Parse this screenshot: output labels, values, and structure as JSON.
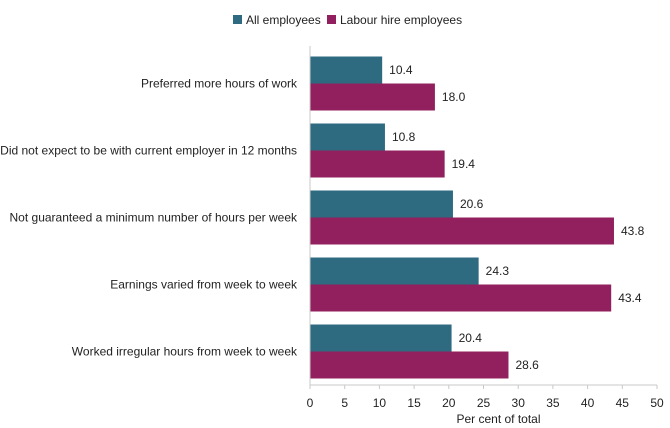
{
  "chart_data": {
    "type": "bar",
    "orientation": "horizontal",
    "categories": [
      "Preferred more hours of work",
      "Did not expect to be with current employer in 12 months",
      "Not guaranteed a minimum number of hours per week",
      "Earnings varied from week to week",
      "Worked irregular hours from week to week"
    ],
    "series": [
      {
        "name": "All employees",
        "color": "#2e6b80",
        "values": [
          10.4,
          10.8,
          20.6,
          24.3,
          20.4
        ]
      },
      {
        "name": "Labour hire employees",
        "color": "#93205e",
        "values": [
          18.0,
          19.4,
          43.8,
          43.4,
          28.6
        ]
      }
    ],
    "value_labels": [
      [
        "10.4",
        "10.8",
        "20.6",
        "24.3",
        "20.4"
      ],
      [
        "18.0",
        "19.4",
        "43.8",
        "43.4",
        "28.6"
      ]
    ],
    "title": "",
    "xlabel": "Per cent of total",
    "ylabel": "",
    "xlim": [
      0,
      50
    ],
    "xticks": [
      0,
      5,
      10,
      15,
      20,
      25,
      30,
      35,
      40,
      45,
      50
    ],
    "xtick_labels": [
      "0",
      "5",
      "10",
      "15",
      "20",
      "25",
      "30",
      "35",
      "40",
      "45",
      "50"
    ],
    "grid": false,
    "legend_position": "top-center"
  }
}
